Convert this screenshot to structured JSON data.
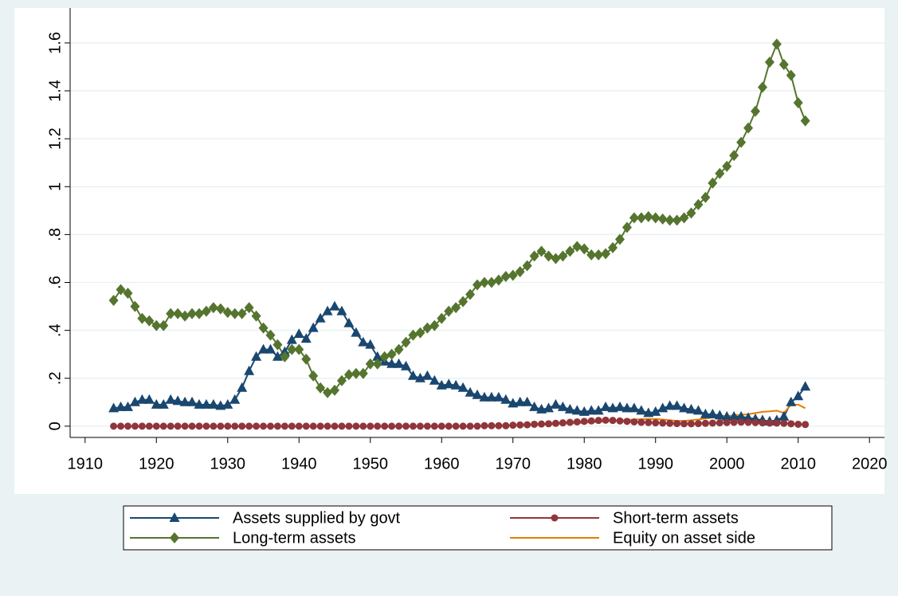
{
  "chart_data": {
    "type": "line",
    "x": [
      1914,
      1915,
      1916,
      1917,
      1918,
      1919,
      1920,
      1921,
      1922,
      1923,
      1924,
      1925,
      1926,
      1927,
      1928,
      1929,
      1930,
      1931,
      1932,
      1933,
      1934,
      1935,
      1936,
      1937,
      1938,
      1939,
      1940,
      1941,
      1942,
      1943,
      1944,
      1945,
      1946,
      1947,
      1948,
      1949,
      1950,
      1951,
      1952,
      1953,
      1954,
      1955,
      1956,
      1957,
      1958,
      1959,
      1960,
      1961,
      1962,
      1963,
      1964,
      1965,
      1966,
      1967,
      1968,
      1969,
      1970,
      1971,
      1972,
      1973,
      1974,
      1975,
      1976,
      1977,
      1978,
      1979,
      1980,
      1981,
      1982,
      1983,
      1984,
      1985,
      1986,
      1987,
      1988,
      1989,
      1990,
      1991,
      1992,
      1993,
      1994,
      1995,
      1996,
      1997,
      1998,
      1999,
      2000,
      2001,
      2002,
      2003,
      2004,
      2005,
      2006,
      2007,
      2008,
      2009,
      2010,
      2011
    ],
    "series": [
      {
        "name": "Assets supplied by govt",
        "color": "#1a476f",
        "marker": "triangle",
        "values": [
          0.075,
          0.08,
          0.08,
          0.1,
          0.11,
          0.11,
          0.09,
          0.09,
          0.11,
          0.105,
          0.1,
          0.1,
          0.09,
          0.09,
          0.09,
          0.085,
          0.09,
          0.11,
          0.16,
          0.23,
          0.29,
          0.32,
          0.32,
          0.29,
          0.31,
          0.36,
          0.385,
          0.365,
          0.41,
          0.45,
          0.48,
          0.5,
          0.48,
          0.43,
          0.39,
          0.35,
          0.34,
          0.29,
          0.27,
          0.26,
          0.26,
          0.25,
          0.21,
          0.2,
          0.21,
          0.19,
          0.17,
          0.175,
          0.17,
          0.16,
          0.14,
          0.13,
          0.12,
          0.12,
          0.12,
          0.11,
          0.095,
          0.1,
          0.1,
          0.08,
          0.07,
          0.075,
          0.09,
          0.08,
          0.07,
          0.065,
          0.06,
          0.065,
          0.065,
          0.08,
          0.075,
          0.08,
          0.075,
          0.075,
          0.065,
          0.055,
          0.06,
          0.075,
          0.085,
          0.085,
          0.075,
          0.07,
          0.065,
          0.05,
          0.05,
          0.045,
          0.04,
          0.04,
          0.04,
          0.035,
          0.03,
          0.025,
          0.02,
          0.025,
          0.04,
          0.1,
          0.125,
          0.165
        ]
      },
      {
        "name": "Short-term assets",
        "color": "#90353b",
        "marker": "circle",
        "values": [
          0,
          0,
          0,
          0,
          0,
          0,
          0,
          0,
          0,
          0,
          0,
          0,
          0,
          0,
          0,
          0,
          0,
          0,
          0,
          0,
          0,
          0,
          0,
          0,
          0,
          0,
          0,
          0,
          0,
          0,
          0,
          0,
          0,
          0,
          0,
          0,
          0,
          0,
          0,
          0,
          0,
          0,
          0,
          0,
          0,
          0,
          0,
          0,
          0,
          0,
          0,
          0,
          0.002,
          0.002,
          0.002,
          0.002,
          0.004,
          0.005,
          0.006,
          0.008,
          0.009,
          0.01,
          0.012,
          0.014,
          0.016,
          0.018,
          0.02,
          0.022,
          0.024,
          0.025,
          0.024,
          0.022,
          0.02,
          0.018,
          0.016,
          0.015,
          0.014,
          0.013,
          0.012,
          0.011,
          0.01,
          0.01,
          0.011,
          0.012,
          0.013,
          0.014,
          0.015,
          0.016,
          0.017,
          0.016,
          0.015,
          0.014,
          0.013,
          0.013,
          0.012,
          0.01,
          0.008,
          0.007
        ]
      },
      {
        "name": "Long-term assets",
        "color": "#55752f",
        "marker": "diamond",
        "values": [
          0.525,
          0.57,
          0.555,
          0.5,
          0.45,
          0.44,
          0.42,
          0.42,
          0.47,
          0.47,
          0.46,
          0.47,
          0.47,
          0.48,
          0.495,
          0.49,
          0.475,
          0.47,
          0.47,
          0.495,
          0.46,
          0.41,
          0.38,
          0.34,
          0.29,
          0.32,
          0.32,
          0.28,
          0.21,
          0.16,
          0.14,
          0.15,
          0.19,
          0.215,
          0.22,
          0.22,
          0.26,
          0.26,
          0.29,
          0.3,
          0.32,
          0.35,
          0.38,
          0.39,
          0.41,
          0.42,
          0.45,
          0.48,
          0.495,
          0.52,
          0.55,
          0.59,
          0.6,
          0.6,
          0.61,
          0.625,
          0.63,
          0.645,
          0.67,
          0.71,
          0.73,
          0.71,
          0.7,
          0.71,
          0.73,
          0.75,
          0.74,
          0.715,
          0.715,
          0.72,
          0.745,
          0.78,
          0.83,
          0.87,
          0.87,
          0.875,
          0.87,
          0.865,
          0.86,
          0.86,
          0.87,
          0.89,
          0.925,
          0.955,
          1.015,
          1.055,
          1.085,
          1.13,
          1.185,
          1.245,
          1.315,
          1.415,
          1.52,
          1.595,
          1.51,
          1.465,
          1.35,
          1.275
        ]
      },
      {
        "name": "Equity on asset side",
        "color": "#e37e00",
        "values": [
          0,
          0,
          0,
          0,
          0,
          0,
          0,
          0,
          0,
          0,
          0,
          0,
          0,
          0,
          0,
          0,
          0,
          0,
          0,
          0,
          0,
          0,
          0,
          0,
          0,
          0,
          0,
          0,
          0,
          0,
          0,
          0,
          0,
          0,
          0,
          0,
          0,
          0,
          0,
          0,
          0,
          0,
          0,
          0,
          0,
          0,
          0,
          0,
          0,
          0,
          0,
          0,
          0,
          0,
          0,
          0,
          0.002,
          0.003,
          0.004,
          0.005,
          0.006,
          0.007,
          0.008,
          0.01,
          0.011,
          0.012,
          0.014,
          0.016,
          0.018,
          0.02,
          0.022,
          0.024,
          0.026,
          0.028,
          0.029,
          0.03,
          0.03,
          0.028,
          0.025,
          0.022,
          0.022,
          0.025,
          0.028,
          0.032,
          0.036,
          0.04,
          0.042,
          0.045,
          0.048,
          0.05,
          0.055,
          0.06,
          0.062,
          0.065,
          0.055,
          0.09,
          0.09,
          0.075
        ]
      }
    ],
    "xlim": [
      1907.9,
      2022.1
    ],
    "xticks": [
      1910,
      1920,
      1930,
      1940,
      1950,
      1960,
      1970,
      1980,
      1990,
      2000,
      2010,
      2020
    ],
    "ylim": [
      -0.047,
      1.746
    ],
    "yticks": [
      0,
      {
        "value": 0.2,
        "label": ".2"
      },
      {
        "value": 0.4,
        "label": ".4"
      },
      {
        "value": 0.6,
        "label": ".6"
      },
      {
        "value": 0.8,
        "label": ".8"
      },
      1,
      1.2,
      1.4,
      1.6
    ],
    "grid": true,
    "legend_position": "bottom"
  }
}
